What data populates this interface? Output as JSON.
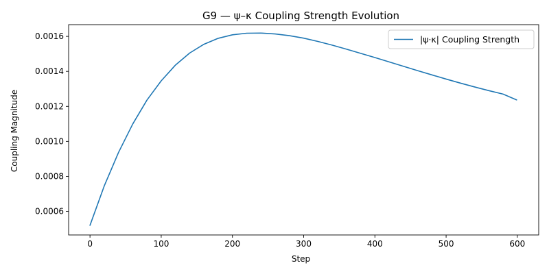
{
  "chart_data": {
    "type": "line",
    "title": "G9 — ψ–κ Coupling Strength Evolution",
    "xlabel": "Step",
    "ylabel": "Coupling Magnitude",
    "xlim": [
      -30,
      630
    ],
    "ylim": [
      0.000465,
      0.001667
    ],
    "xticks": [
      0,
      100,
      200,
      300,
      400,
      500,
      600
    ],
    "xtick_labels": [
      "0",
      "100",
      "200",
      "300",
      "400",
      "500",
      "600"
    ],
    "yticks": [
      0.0006,
      0.0008,
      0.001,
      0.0012,
      0.0014,
      0.0016
    ],
    "ytick_labels": [
      "0.0006",
      "0.0008",
      "0.0010",
      "0.0012",
      "0.0014",
      "0.0016"
    ],
    "grid": false,
    "legend_position": "upper right",
    "series": [
      {
        "name": "|ψ·κ| Coupling Strength",
        "color": "#1f77b4",
        "x": [
          0,
          20,
          40,
          60,
          80,
          100,
          120,
          140,
          160,
          180,
          200,
          220,
          240,
          260,
          280,
          300,
          320,
          340,
          360,
          380,
          400,
          420,
          440,
          460,
          480,
          500,
          520,
          540,
          560,
          580,
          599
        ],
        "y": [
          0.00052,
          0.000745,
          0.000936,
          0.001099,
          0.001236,
          0.001346,
          0.001436,
          0.001505,
          0.001555,
          0.001589,
          0.001609,
          0.001618,
          0.001619,
          0.001614,
          0.001604,
          0.00159,
          0.001571,
          0.00155,
          0.001527,
          0.001503,
          0.001479,
          0.001454,
          0.001429,
          0.001404,
          0.00138,
          0.001356,
          0.001333,
          0.001311,
          0.00129,
          0.00127,
          0.001237
        ]
      }
    ]
  }
}
